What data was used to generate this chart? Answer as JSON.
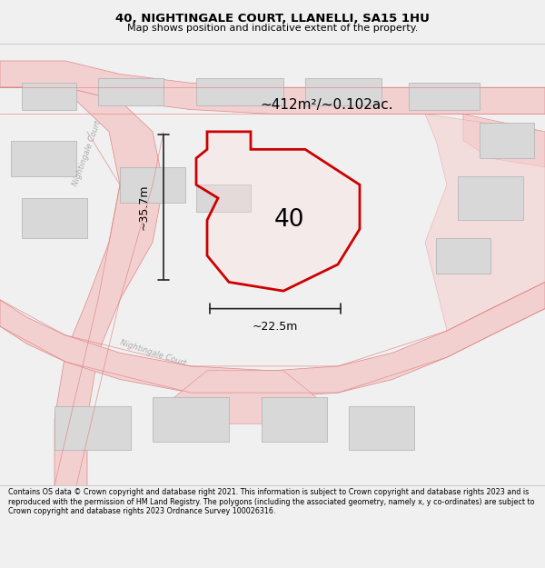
{
  "title": "40, NIGHTINGALE COURT, LLANELLI, SA15 1HU",
  "subtitle": "Map shows position and indicative extent of the property.",
  "footer": "Contains OS data © Crown copyright and database right 2021. This information is subject to Crown copyright and database rights 2023 and is reproduced with the permission of HM Land Registry. The polygons (including the associated geometry, namely x, y co-ordinates) are subject to Crown copyright and database rights 2023 Ordnance Survey 100026316.",
  "area_label": "~412m²/~0.102ac.",
  "plot_number": "40",
  "dim_height": "~35.7m",
  "dim_width": "~22.5m",
  "map_bg": "#ffffff",
  "bld_color": "#d8d8d8",
  "bld_edge": "#b0b0b0",
  "road_fill": "#f2d0d0",
  "road_edge": "#e08888",
  "plot_fill_rgba": [
    1.0,
    0.88,
    0.88,
    0.35
  ],
  "plot_edge": "#cc0000",
  "road_label_color": "#aaaaaa",
  "dim_color": "#222222",
  "separator_color": "#cccccc"
}
